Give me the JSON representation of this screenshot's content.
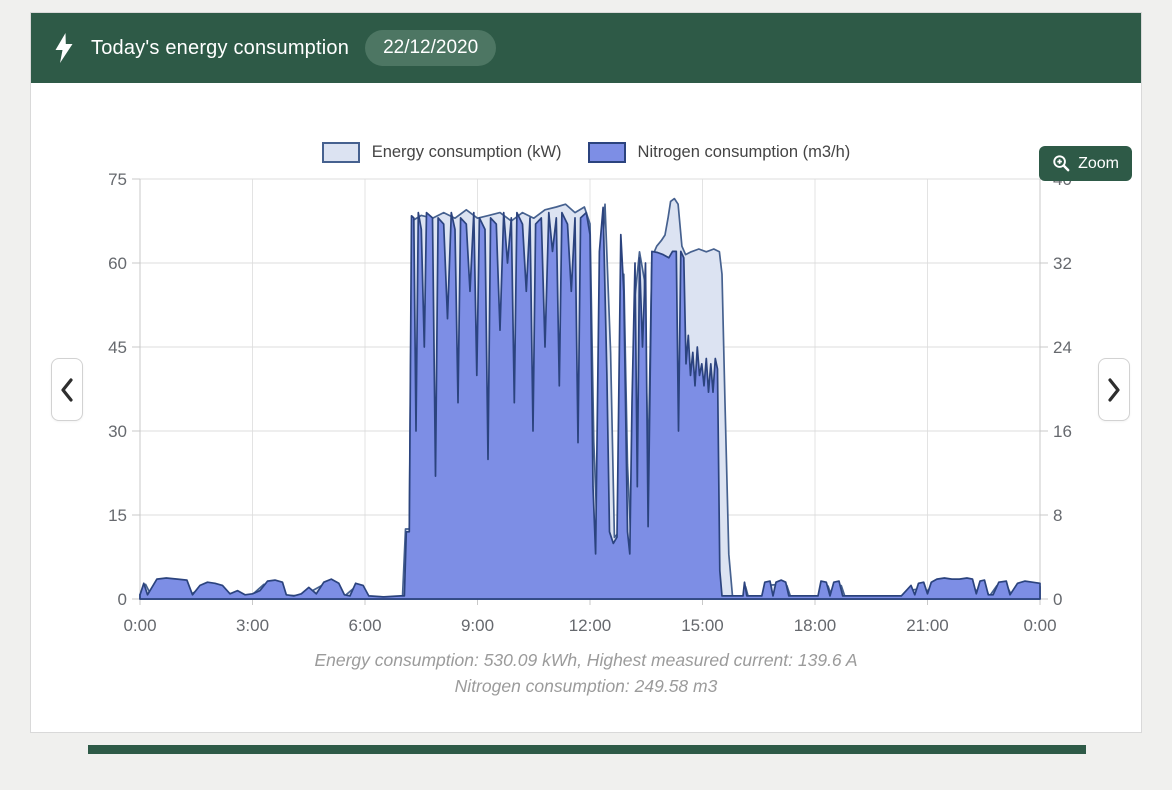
{
  "header": {
    "title": "Today's energy consumption",
    "date": "22/12/2020"
  },
  "toolbar": {
    "zoom_label": "Zoom"
  },
  "icons": {
    "header_icon": "lightning-bolt",
    "zoom_icon": "magnifier-plus",
    "prev_icon": "chevron-left",
    "next_icon": "chevron-right"
  },
  "summary": {
    "line1": "Energy consumption: 530.09 kWh, Highest measured current: 139.6 A",
    "line2": "Nitrogen consumption: 249.58 m3"
  },
  "colors": {
    "header_green": "#2e5a47",
    "badge_green": "#4d7663",
    "grid": "#dcdcdc",
    "grid_vertical": "#e3e3e3",
    "axis": "#c9c9c9",
    "axis_text": "#66696e",
    "energy_fill": "#dce3f2",
    "energy_stroke": "#46618f",
    "nitrogen_fill": "#7d8ee5",
    "nitrogen_stroke": "#2b437e"
  },
  "chart_data": {
    "type": "area",
    "title": "",
    "legend_position": "top",
    "grid": true,
    "x_axis": {
      "labels": [
        "0:00",
        "3:00",
        "6:00",
        "9:00",
        "12:00",
        "15:00",
        "18:00",
        "21:00",
        "0:00"
      ],
      "hours": [
        0,
        3,
        6,
        9,
        12,
        15,
        18,
        21,
        24
      ],
      "range_hours": [
        0,
        24
      ]
    },
    "y_left": {
      "ticks": [
        0,
        15,
        30,
        45,
        60,
        75
      ],
      "max": 75,
      "label": "Energy consumption (kW)"
    },
    "y_right": {
      "ticks": [
        0,
        8,
        16,
        24,
        32,
        40
      ],
      "max": 40,
      "label": "Nitrogen consumption (m3/h)"
    },
    "series": [
      {
        "name": "Energy consumption (kW)",
        "axis": "left",
        "unit": "kW",
        "fill": "#dce3f2",
        "stroke": "#46618f",
        "points": [
          [
            0,
            0.8
          ],
          [
            0.15,
            2.6
          ],
          [
            0.3,
            0.6
          ],
          [
            0.5,
            2.8
          ],
          [
            0.8,
            3
          ],
          [
            1.1,
            2.8
          ],
          [
            1.35,
            0.8
          ],
          [
            1.7,
            2.2
          ],
          [
            2,
            2.4
          ],
          [
            2.3,
            1
          ],
          [
            2.6,
            0.6
          ],
          [
            3,
            0.8
          ],
          [
            3.3,
            2.6
          ],
          [
            3.7,
            2.6
          ],
          [
            3.9,
            0.6
          ],
          [
            4.3,
            0.6
          ],
          [
            4.6,
            1.5
          ],
          [
            4.9,
            2.6
          ],
          [
            5.2,
            2.4
          ],
          [
            5.45,
            0.5
          ],
          [
            5.75,
            2.2
          ],
          [
            5.95,
            1.8
          ],
          [
            6.1,
            0.4
          ],
          [
            6.6,
            0.4
          ],
          [
            7,
            0.4
          ],
          [
            7.08,
            12.5
          ],
          [
            7.18,
            12.5
          ],
          [
            7.25,
            67.5
          ],
          [
            7.5,
            68.5
          ],
          [
            7.8,
            68
          ],
          [
            8.1,
            69
          ],
          [
            8.4,
            68
          ],
          [
            8.7,
            69.5
          ],
          [
            9,
            68
          ],
          [
            9.3,
            68.5
          ],
          [
            9.6,
            69
          ],
          [
            9.9,
            67.5
          ],
          [
            10.2,
            69
          ],
          [
            10.5,
            68
          ],
          [
            10.8,
            69.5
          ],
          [
            11.1,
            70
          ],
          [
            11.35,
            70.5
          ],
          [
            11.6,
            69
          ],
          [
            11.85,
            70
          ],
          [
            12,
            67
          ],
          [
            12.1,
            28
          ],
          [
            12.2,
            11
          ],
          [
            12.3,
            58
          ],
          [
            12.4,
            70.5
          ],
          [
            12.55,
            44
          ],
          [
            12.65,
            11
          ],
          [
            12.78,
            12
          ],
          [
            12.9,
            58
          ],
          [
            13,
            24
          ],
          [
            13.08,
            12
          ],
          [
            13.2,
            54
          ],
          [
            13.32,
            62
          ],
          [
            13.45,
            57
          ],
          [
            13.55,
            24
          ],
          [
            13.65,
            61
          ],
          [
            13.78,
            63
          ],
          [
            13.9,
            64
          ],
          [
            14,
            65
          ],
          [
            14.08,
            68
          ],
          [
            14.15,
            71
          ],
          [
            14.25,
            71.5
          ],
          [
            14.35,
            70.5
          ],
          [
            14.45,
            63
          ],
          [
            14.55,
            61.5
          ],
          [
            14.7,
            62
          ],
          [
            14.9,
            62.5
          ],
          [
            15.1,
            62
          ],
          [
            15.3,
            62.5
          ],
          [
            15.45,
            62
          ],
          [
            15.52,
            58
          ],
          [
            15.6,
            35
          ],
          [
            15.7,
            8
          ],
          [
            15.8,
            0.5
          ],
          [
            16.1,
            0.4
          ],
          [
            16.15,
            2.2
          ],
          [
            16.22,
            0.4
          ],
          [
            16.6,
            0.4
          ],
          [
            16.7,
            2.4
          ],
          [
            16.85,
            2.5
          ],
          [
            17.05,
            2.6
          ],
          [
            17.25,
            2.4
          ],
          [
            17.35,
            0.4
          ],
          [
            18.1,
            0.4
          ],
          [
            18.2,
            2.5
          ],
          [
            18.35,
            2.3
          ],
          [
            18.45,
            0.4
          ],
          [
            18.55,
            2.4
          ],
          [
            18.7,
            2.4
          ],
          [
            18.8,
            0.4
          ],
          [
            19.5,
            0.3
          ],
          [
            20.5,
            0.3
          ],
          [
            20.6,
            1.6
          ],
          [
            20.75,
            1.8
          ],
          [
            21,
            1.5
          ],
          [
            21.2,
            2.8
          ],
          [
            21.5,
            3
          ],
          [
            21.8,
            2.8
          ],
          [
            22.1,
            2.9
          ],
          [
            22.35,
            1.2
          ],
          [
            22.5,
            2.6
          ],
          [
            22.65,
            0.5
          ],
          [
            22.85,
            2.4
          ],
          [
            23.1,
            2.5
          ],
          [
            23.25,
            0.6
          ],
          [
            23.5,
            2.3
          ],
          [
            23.75,
            2.6
          ],
          [
            24,
            2.2
          ]
        ]
      },
      {
        "name": "Nitrogen consumption (m3/h)",
        "axis": "right",
        "unit": "m3/h",
        "fill": "#7d8ee5",
        "stroke": "#2b437e",
        "points": [
          [
            0,
            0.4
          ],
          [
            0.1,
            1.5
          ],
          [
            0.2,
            0.4
          ],
          [
            0.45,
            1.9
          ],
          [
            0.7,
            2
          ],
          [
            1,
            1.9
          ],
          [
            1.25,
            1.8
          ],
          [
            1.4,
            0.4
          ],
          [
            1.6,
            1.3
          ],
          [
            1.8,
            1.6
          ],
          [
            2,
            1.5
          ],
          [
            2.2,
            1.3
          ],
          [
            2.4,
            0.5
          ],
          [
            2.6,
            0.8
          ],
          [
            2.8,
            0.4
          ],
          [
            3,
            0.5
          ],
          [
            3.2,
            0.8
          ],
          [
            3.4,
            1.7
          ],
          [
            3.6,
            1.8
          ],
          [
            3.8,
            1.6
          ],
          [
            3.9,
            0.4
          ],
          [
            4.1,
            0.3
          ],
          [
            4.3,
            0.5
          ],
          [
            4.5,
            1.1
          ],
          [
            4.7,
            0.5
          ],
          [
            4.9,
            1.6
          ],
          [
            5.1,
            1.9
          ],
          [
            5.3,
            1.5
          ],
          [
            5.45,
            0.4
          ],
          [
            5.6,
            0.3
          ],
          [
            5.75,
            1.5
          ],
          [
            5.95,
            1.3
          ],
          [
            6.1,
            0.3
          ],
          [
            6.5,
            0.2
          ],
          [
            6.95,
            0.3
          ],
          [
            7.05,
            0.3
          ],
          [
            7.1,
            6.4
          ],
          [
            7.18,
            6.4
          ],
          [
            7.24,
            36.5
          ],
          [
            7.3,
            36.3
          ],
          [
            7.36,
            16
          ],
          [
            7.42,
            36.8
          ],
          [
            7.5,
            35.2
          ],
          [
            7.58,
            24
          ],
          [
            7.64,
            36.8
          ],
          [
            7.8,
            36.3
          ],
          [
            7.88,
            11.7
          ],
          [
            7.95,
            36.3
          ],
          [
            8.1,
            35.7
          ],
          [
            8.2,
            26.7
          ],
          [
            8.3,
            36.8
          ],
          [
            8.4,
            35.2
          ],
          [
            8.48,
            18.7
          ],
          [
            8.55,
            36.3
          ],
          [
            8.7,
            35.7
          ],
          [
            8.8,
            29.3
          ],
          [
            8.9,
            36.8
          ],
          [
            8.98,
            21.3
          ],
          [
            9.05,
            36.3
          ],
          [
            9.2,
            35.2
          ],
          [
            9.28,
            13.3
          ],
          [
            9.35,
            36.3
          ],
          [
            9.5,
            35.7
          ],
          [
            9.6,
            25.6
          ],
          [
            9.7,
            36.8
          ],
          [
            9.8,
            32
          ],
          [
            9.9,
            36.3
          ],
          [
            9.98,
            18.7
          ],
          [
            10.05,
            36.8
          ],
          [
            10.2,
            35.7
          ],
          [
            10.3,
            29.3
          ],
          [
            10.4,
            36.3
          ],
          [
            10.48,
            16
          ],
          [
            10.55,
            35.7
          ],
          [
            10.7,
            36.3
          ],
          [
            10.8,
            24
          ],
          [
            10.9,
            36.8
          ],
          [
            11,
            33.1
          ],
          [
            11.1,
            36.3
          ],
          [
            11.18,
            20.3
          ],
          [
            11.25,
            36.8
          ],
          [
            11.4,
            35.7
          ],
          [
            11.5,
            29.3
          ],
          [
            11.6,
            36.3
          ],
          [
            11.68,
            14.9
          ],
          [
            11.75,
            36.3
          ],
          [
            11.9,
            36.8
          ],
          [
            12,
            34.7
          ],
          [
            12.08,
            10.7
          ],
          [
            12.15,
            4.3
          ],
          [
            12.25,
            33.1
          ],
          [
            12.35,
            37.3
          ],
          [
            12.45,
            21.3
          ],
          [
            12.52,
            6.4
          ],
          [
            12.62,
            5.3
          ],
          [
            12.72,
            5.9
          ],
          [
            12.82,
            34.7
          ],
          [
            12.9,
            29.3
          ],
          [
            13,
            6.4
          ],
          [
            13.06,
            4.3
          ],
          [
            13.12,
            18.7
          ],
          [
            13.2,
            32
          ],
          [
            13.26,
            10.7
          ],
          [
            13.32,
            32.5
          ],
          [
            13.4,
            24
          ],
          [
            13.48,
            32
          ],
          [
            13.55,
            6.9
          ],
          [
            13.65,
            33.1
          ],
          [
            13.8,
            33
          ],
          [
            13.95,
            32.8
          ],
          [
            14.1,
            32.5
          ],
          [
            14.2,
            33.1
          ],
          [
            14.3,
            33.1
          ],
          [
            14.36,
            16
          ],
          [
            14.42,
            33.1
          ],
          [
            14.5,
            32.5
          ],
          [
            14.56,
            22.4
          ],
          [
            14.62,
            25.1
          ],
          [
            14.68,
            21.3
          ],
          [
            14.74,
            23.5
          ],
          [
            14.8,
            20.3
          ],
          [
            14.86,
            24
          ],
          [
            14.92,
            21.3
          ],
          [
            14.98,
            22.4
          ],
          [
            15.04,
            20.3
          ],
          [
            15.1,
            22.9
          ],
          [
            15.16,
            19.7
          ],
          [
            15.22,
            22.4
          ],
          [
            15.28,
            19.7
          ],
          [
            15.34,
            22.9
          ],
          [
            15.4,
            21.9
          ],
          [
            15.46,
            2.7
          ],
          [
            15.52,
            0.3
          ],
          [
            15.8,
            0.3
          ],
          [
            16.08,
            0.3
          ],
          [
            16.12,
            1.6
          ],
          [
            16.18,
            0.3
          ],
          [
            16.58,
            0.3
          ],
          [
            16.66,
            1.6
          ],
          [
            16.8,
            1.7
          ],
          [
            16.88,
            0.3
          ],
          [
            16.96,
            1.6
          ],
          [
            17.1,
            1.8
          ],
          [
            17.22,
            1.6
          ],
          [
            17.3,
            0.3
          ],
          [
            17.6,
            0.3
          ],
          [
            18.08,
            0.3
          ],
          [
            18.16,
            1.7
          ],
          [
            18.3,
            1.6
          ],
          [
            18.4,
            0.3
          ],
          [
            18.5,
            1.6
          ],
          [
            18.64,
            1.7
          ],
          [
            18.74,
            0.3
          ],
          [
            19.2,
            0.3
          ],
          [
            20.3,
            0.3
          ],
          [
            20.56,
            1.3
          ],
          [
            20.66,
            0.4
          ],
          [
            20.76,
            1.5
          ],
          [
            20.9,
            1.6
          ],
          [
            21,
            0.5
          ],
          [
            21.1,
            1.6
          ],
          [
            21.25,
            1.9
          ],
          [
            21.45,
            2
          ],
          [
            21.65,
            1.9
          ],
          [
            21.85,
            1.9
          ],
          [
            22.05,
            2
          ],
          [
            22.2,
            1.9
          ],
          [
            22.3,
            0.5
          ],
          [
            22.4,
            1.7
          ],
          [
            22.52,
            1.8
          ],
          [
            22.62,
            0.4
          ],
          [
            22.75,
            0.4
          ],
          [
            22.9,
            1.6
          ],
          [
            23.1,
            1.7
          ],
          [
            23.2,
            0.4
          ],
          [
            23.4,
            1.5
          ],
          [
            23.6,
            1.7
          ],
          [
            23.8,
            1.6
          ],
          [
            24,
            1.5
          ]
        ]
      }
    ]
  }
}
